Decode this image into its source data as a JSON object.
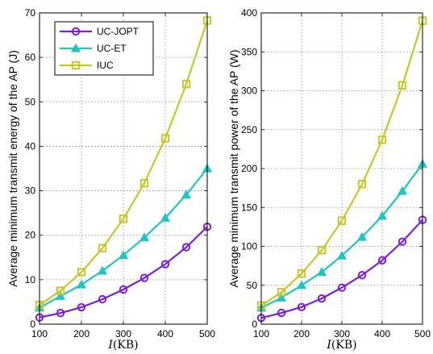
{
  "colors": {
    "UC-JOPT": "#7c1fd6",
    "UC-ET": "#1ec5c3",
    "IUC": "#c7c62a",
    "axis": "#000000",
    "grid": "#888888"
  },
  "legend": {
    "placement": "top-left of left panel",
    "entries": [
      {
        "label": "UC-JOPT",
        "marker": "circle"
      },
      {
        "label": "UC-ET",
        "marker": "triangle"
      },
      {
        "label": "IUC",
        "marker": "square"
      }
    ]
  },
  "chart_data": [
    {
      "type": "line",
      "title": "",
      "xlabel_italic": "I",
      "xlabel_rest": "(KB)",
      "ylabel": "Average minimum transmit energy of the AP (J)",
      "xlim": [
        100,
        500
      ],
      "ylim": [
        0,
        70
      ],
      "xticks": [
        100,
        200,
        300,
        400,
        500
      ],
      "yticks": [
        0,
        10,
        20,
        30,
        40,
        50,
        60,
        70
      ],
      "grid": true,
      "x": [
        100,
        150,
        200,
        250,
        300,
        350,
        400,
        450,
        500
      ],
      "series": [
        {
          "name": "UC-JOPT",
          "marker": "circle",
          "values": [
            1.5,
            2.5,
            3.8,
            5.6,
            7.8,
            10.4,
            13.5,
            17.3,
            21.9
          ]
        },
        {
          "name": "UC-ET",
          "marker": "triangle",
          "values": [
            3.7,
            6.3,
            8.9,
            12.0,
            15.5,
            19.5,
            23.9,
            29.1,
            35.0
          ]
        },
        {
          "name": "IUC",
          "marker": "square",
          "values": [
            4.3,
            7.5,
            11.7,
            17.1,
            23.7,
            31.7,
            41.8,
            54.0,
            68.3
          ]
        }
      ]
    },
    {
      "type": "line",
      "title": "",
      "xlabel_italic": "I",
      "xlabel_rest": "(KB)",
      "ylabel": "Average minimum transmit power of the AP (W)",
      "xlim": [
        100,
        500
      ],
      "ylim": [
        0,
        400
      ],
      "xticks": [
        100,
        200,
        300,
        400,
        500
      ],
      "yticks": [
        0,
        50,
        100,
        150,
        200,
        250,
        300,
        350,
        400
      ],
      "grid": true,
      "x": [
        100,
        150,
        200,
        250,
        300,
        350,
        400,
        450,
        500
      ],
      "series": [
        {
          "name": "UC-JOPT",
          "marker": "circle",
          "values": [
            8,
            14.5,
            22,
            33,
            47,
            63,
            82,
            106,
            134
          ]
        },
        {
          "name": "UC-ET",
          "marker": "triangle",
          "values": [
            21,
            34,
            50,
            67,
            88,
            112,
            139,
            171,
            206
          ]
        },
        {
          "name": "IUC",
          "marker": "square",
          "values": [
            24,
            41,
            65,
            95,
            133,
            180,
            237,
            307,
            390
          ]
        }
      ]
    }
  ]
}
